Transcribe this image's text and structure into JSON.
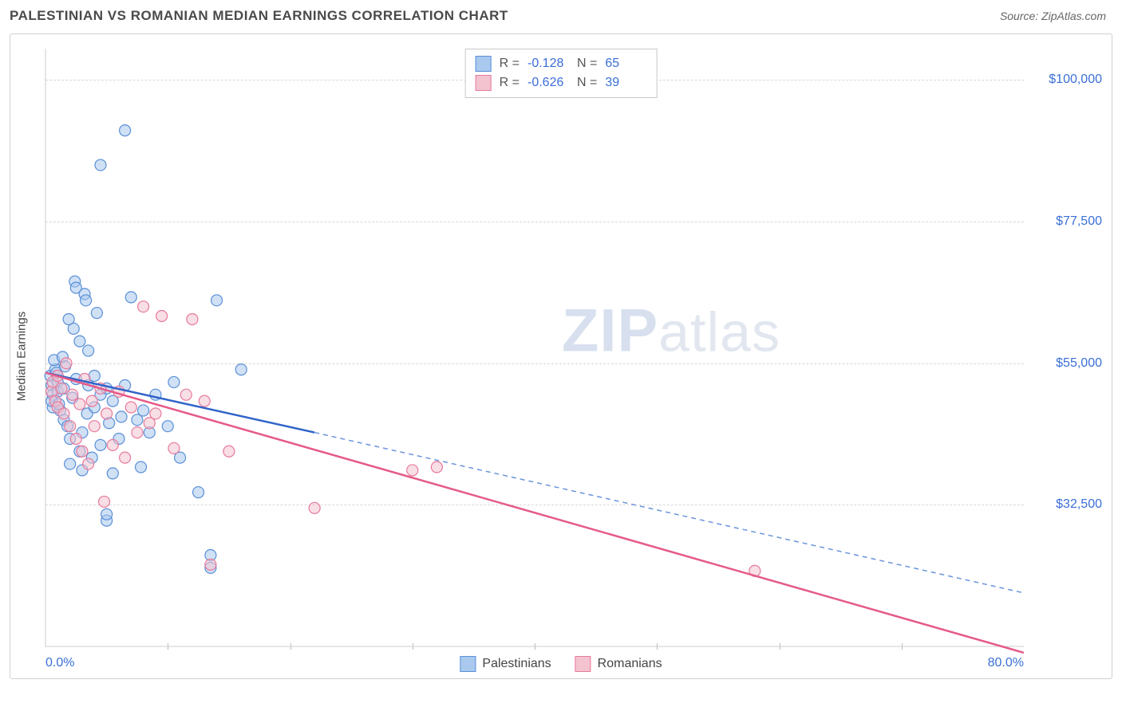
{
  "header": {
    "title": "PALESTINIAN VS ROMANIAN MEDIAN EARNINGS CORRELATION CHART",
    "source_prefix": "Source: ",
    "source_name": "ZipAtlas.com"
  },
  "chart": {
    "type": "scatter",
    "ylabel": "Median Earnings",
    "xlim": [
      0,
      80
    ],
    "ylim": [
      10000,
      105000
    ],
    "x_tick_labels": {
      "min": "0.0%",
      "max": "80.0%"
    },
    "y_ticks": [
      32500,
      55000,
      77500,
      100000
    ],
    "y_tick_labels": [
      "$32,500",
      "$55,000",
      "$77,500",
      "$100,000"
    ],
    "x_minor_step": 10,
    "grid_color": "#d8d8d8",
    "background_color": "#ffffff",
    "axis_color": "#cccccc",
    "marker_radius": 7,
    "marker_opacity": 0.55,
    "series": [
      {
        "name": "Palestinians",
        "color_fill": "#a9c9ee",
        "color_stroke": "#5a8fd6",
        "R": "-0.128",
        "N": "65",
        "trend": {
          "x1": 0,
          "y1": 53500,
          "x_solid_end": 22,
          "y_solid_end": 44000,
          "x2": 80,
          "y2": 18500,
          "solid_color": "#2f63c9",
          "dash_color": "#6a94dc"
        },
        "points": [
          [
            0.4,
            53000
          ],
          [
            0.5,
            51500
          ],
          [
            0.6,
            50000
          ],
          [
            0.8,
            54000
          ],
          [
            0.6,
            48000
          ],
          [
            0.7,
            55500
          ],
          [
            0.5,
            49000
          ],
          [
            1.0,
            52000
          ],
          [
            1.2,
            47500
          ],
          [
            1.4,
            56000
          ],
          [
            1.0,
            50500
          ],
          [
            0.9,
            53500
          ],
          [
            1.1,
            48500
          ],
          [
            1.5,
            46000
          ],
          [
            1.5,
            51000
          ],
          [
            1.8,
            45000
          ],
          [
            1.6,
            54500
          ],
          [
            2.0,
            39000
          ],
          [
            2.0,
            43000
          ],
          [
            2.2,
            49500
          ],
          [
            2.3,
            60500
          ],
          [
            2.4,
            68000
          ],
          [
            2.5,
            67000
          ],
          [
            2.5,
            52500
          ],
          [
            2.8,
            41000
          ],
          [
            3.0,
            38000
          ],
          [
            3.0,
            44000
          ],
          [
            3.2,
            66000
          ],
          [
            3.3,
            65000
          ],
          [
            3.4,
            47000
          ],
          [
            3.5,
            57000
          ],
          [
            3.8,
            40000
          ],
          [
            4.0,
            53000
          ],
          [
            4.0,
            48000
          ],
          [
            4.2,
            63000
          ],
          [
            4.5,
            42000
          ],
          [
            4.5,
            50000
          ],
          [
            5.0,
            30000
          ],
          [
            5.0,
            51000
          ],
          [
            5.2,
            45500
          ],
          [
            5.5,
            49000
          ],
          [
            5.5,
            37500
          ],
          [
            6.0,
            43000
          ],
          [
            6.2,
            46500
          ],
          [
            6.5,
            51500
          ],
          [
            7.0,
            65500
          ],
          [
            7.5,
            46000
          ],
          [
            7.8,
            38500
          ],
          [
            8.0,
            47500
          ],
          [
            8.5,
            44000
          ],
          [
            9.0,
            50000
          ],
          [
            10.0,
            45000
          ],
          [
            10.5,
            52000
          ],
          [
            11.0,
            40000
          ],
          [
            12.5,
            34500
          ],
          [
            13.5,
            22500
          ],
          [
            13.5,
            24500
          ],
          [
            14.0,
            65000
          ],
          [
            16.0,
            54000
          ],
          [
            4.5,
            86500
          ],
          [
            6.5,
            92000
          ],
          [
            5.0,
            31000
          ],
          [
            3.5,
            51500
          ],
          [
            2.8,
            58500
          ],
          [
            1.9,
            62000
          ]
        ]
      },
      {
        "name": "Romanians",
        "color_fill": "#f3c3d0",
        "color_stroke": "#e77a9c",
        "R": "-0.626",
        "N": "39",
        "trend": {
          "x1": 0,
          "y1": 53500,
          "x_solid_end": 80,
          "y_solid_end": 9000,
          "x2": 80,
          "y2": 9000,
          "solid_color": "#e55a87",
          "dash_color": "#e55a87"
        },
        "points": [
          [
            0.5,
            50500
          ],
          [
            0.6,
            52000
          ],
          [
            0.8,
            49000
          ],
          [
            1.0,
            53000
          ],
          [
            1.0,
            48000
          ],
          [
            1.3,
            51000
          ],
          [
            1.5,
            47000
          ],
          [
            1.7,
            55000
          ],
          [
            2.0,
            45000
          ],
          [
            2.2,
            50000
          ],
          [
            2.5,
            43000
          ],
          [
            2.8,
            48500
          ],
          [
            3.0,
            41000
          ],
          [
            3.2,
            52500
          ],
          [
            3.5,
            39000
          ],
          [
            3.8,
            49000
          ],
          [
            4.0,
            45000
          ],
          [
            4.5,
            51000
          ],
          [
            4.8,
            33000
          ],
          [
            5.0,
            47000
          ],
          [
            5.5,
            42000
          ],
          [
            6.0,
            50500
          ],
          [
            6.5,
            40000
          ],
          [
            7.0,
            48000
          ],
          [
            7.5,
            44000
          ],
          [
            8.0,
            64000
          ],
          [
            8.5,
            45500
          ],
          [
            9.0,
            47000
          ],
          [
            9.5,
            62500
          ],
          [
            10.5,
            41500
          ],
          [
            11.5,
            50000
          ],
          [
            12.0,
            62000
          ],
          [
            13.0,
            49000
          ],
          [
            13.5,
            23000
          ],
          [
            15.0,
            41000
          ],
          [
            22.0,
            32000
          ],
          [
            30.0,
            38000
          ],
          [
            32.0,
            38500
          ],
          [
            58.0,
            22000
          ]
        ]
      }
    ],
    "legend": {
      "items": [
        {
          "label": "Palestinians",
          "fill": "#a9c9ee",
          "stroke": "#5a8fd6"
        },
        {
          "label": "Romanians",
          "fill": "#f3c3d0",
          "stroke": "#e77a9c"
        }
      ]
    },
    "watermark_zip": "ZIP",
    "watermark_atlas": "atlas"
  }
}
